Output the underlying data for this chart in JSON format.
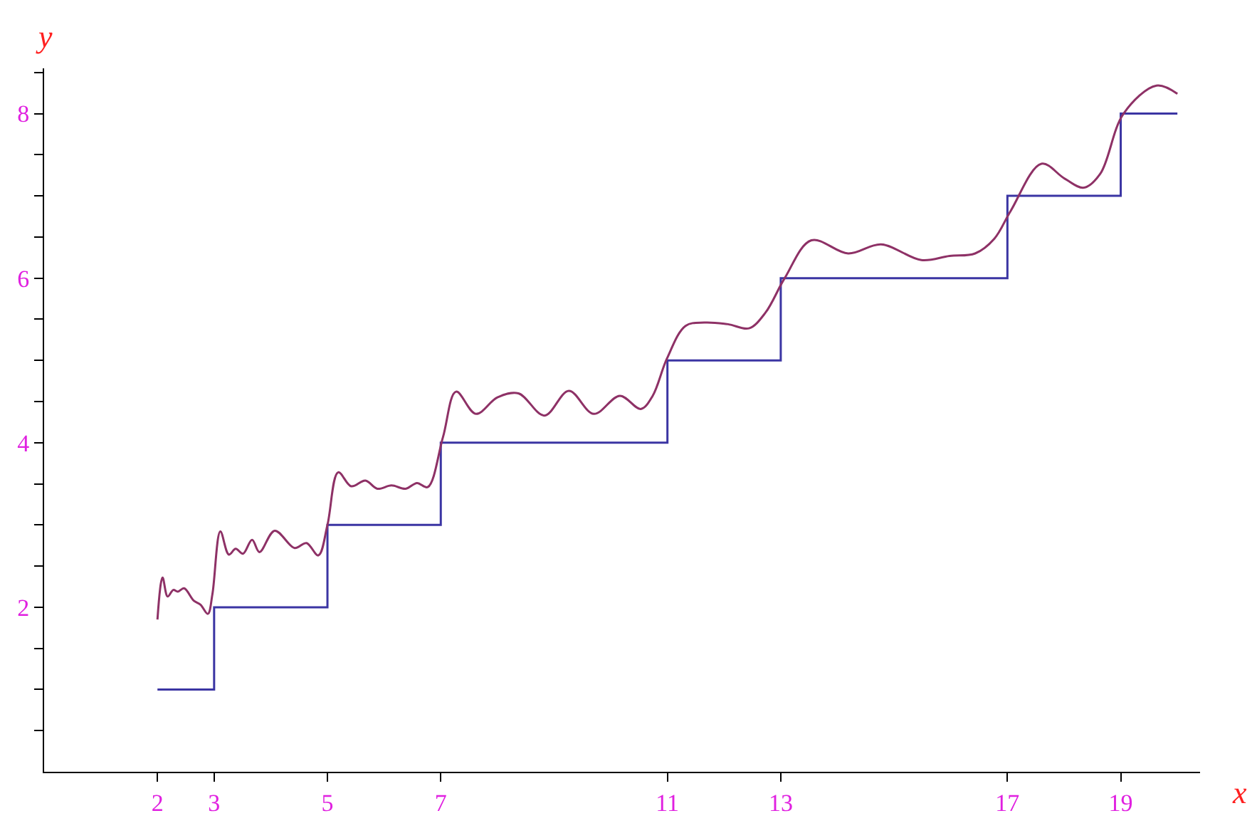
{
  "chart_data": {
    "type": "line",
    "xlabel": "x",
    "ylabel": "y",
    "xlim": [
      0,
      20.4
    ],
    "ylim": [
      0,
      8.55
    ],
    "xticks": [
      2,
      3,
      5,
      7,
      11,
      13,
      17,
      19
    ],
    "yticks": [
      {
        "value": 0.5,
        "label": null
      },
      {
        "value": 1,
        "label": null
      },
      {
        "value": 1.5,
        "label": null
      },
      2,
      {
        "value": 2.5,
        "label": null
      },
      {
        "value": 3,
        "label": null
      },
      {
        "value": 3.5,
        "label": null
      },
      4,
      {
        "value": 4.5,
        "label": null
      },
      {
        "value": 5,
        "label": null
      },
      {
        "value": 5.5,
        "label": null
      },
      6,
      {
        "value": 6.5,
        "label": null
      },
      {
        "value": 7,
        "label": null
      },
      {
        "value": 7.5,
        "label": null
      },
      8,
      {
        "value": 8.5,
        "label": null
      }
    ],
    "marker": "none",
    "line_style": "solid",
    "series": [
      {
        "type": "step",
        "color": "#3b35a3",
        "x": [
          2,
          3,
          5,
          7,
          11,
          13,
          17,
          19,
          20
        ],
        "values": [
          1,
          2,
          3,
          4,
          5,
          6,
          7,
          8,
          8
        ]
      },
      {
        "color": "#8e3166",
        "x": [
          2.0,
          2.09,
          2.18,
          2.28,
          2.36,
          2.47,
          2.64,
          2.76,
          2.89,
          2.97,
          3.11,
          3.26,
          3.38,
          3.51,
          3.67,
          3.8,
          4.07,
          4.42,
          4.63,
          4.84,
          5.0,
          5.19,
          5.42,
          5.67,
          5.88,
          6.13,
          6.38,
          6.58,
          6.77,
          7.04,
          7.27,
          7.62,
          8.0,
          8.37,
          8.83,
          9.26,
          9.7,
          10.16,
          10.53,
          10.74,
          10.99,
          11.32,
          11.65,
          12.07,
          12.44,
          12.73,
          13.07,
          13.54,
          14.19,
          14.77,
          15.48,
          15.98,
          16.43,
          16.77,
          17.06,
          17.6,
          18.01,
          18.35,
          18.64,
          19.05,
          19.63,
          20.0
        ],
        "values": [
          1.85,
          2.36,
          2.13,
          2.21,
          2.19,
          2.23,
          2.08,
          2.03,
          1.92,
          2.16,
          2.92,
          2.64,
          2.71,
          2.65,
          2.82,
          2.67,
          2.93,
          2.72,
          2.78,
          2.63,
          3.0,
          3.64,
          3.47,
          3.54,
          3.44,
          3.48,
          3.44,
          3.51,
          3.46,
          4.07,
          4.62,
          4.35,
          4.55,
          4.6,
          4.33,
          4.63,
          4.35,
          4.57,
          4.41,
          4.57,
          5.02,
          5.42,
          5.46,
          5.44,
          5.39,
          5.58,
          6.0,
          6.46,
          6.3,
          6.41,
          6.22,
          6.27,
          6.3,
          6.48,
          6.82,
          7.39,
          7.21,
          7.1,
          7.27,
          8.0,
          8.34,
          8.24
        ]
      }
    ]
  }
}
